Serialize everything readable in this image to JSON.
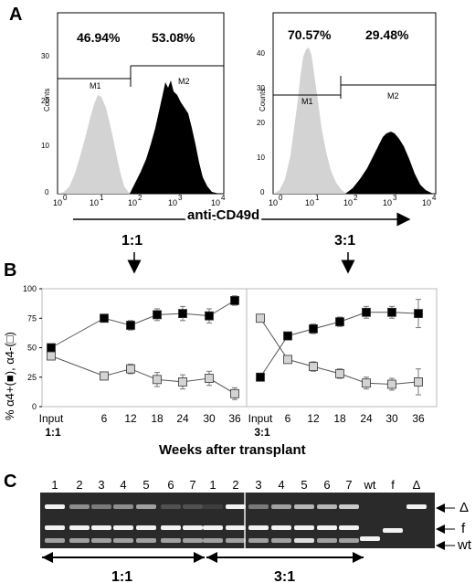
{
  "panels": {
    "A": "A",
    "B": "B",
    "C": "C"
  },
  "panel_a": {
    "x_axis_label": "anti-CD49d",
    "y_axis_label": "Counts",
    "x_ticks": [
      "10",
      "0",
      "10",
      "1",
      "10",
      "2",
      "10",
      "3",
      "10",
      "4"
    ],
    "histograms": [
      {
        "ratio": "1:1",
        "left_pct": "46.94%",
        "right_pct": "53.08%",
        "gate_left": "M1",
        "gate_right": "M2",
        "y_ticks": [
          "0",
          "10",
          "20",
          "30"
        ]
      },
      {
        "ratio": "3:1",
        "left_pct": "70.57%",
        "right_pct": "29.48%",
        "gate_left": "M1",
        "gate_right": "M2",
        "y_ticks": [
          "0",
          "10",
          "20",
          "30",
          "40"
        ]
      }
    ]
  },
  "chart_data": [
    {
      "type": "line",
      "panel": "B-left",
      "x_tick_labels": [
        "Input",
        "6",
        "12",
        "18",
        "24",
        "30",
        "36"
      ],
      "x_sub_label": "1:1",
      "xlabel": "Weeks after transplant",
      "ylabel": "% α4+(■), α4-(□)",
      "ylim": [
        0,
        100
      ],
      "y_ticks": [
        "0",
        "25",
        "50",
        "75",
        "100"
      ],
      "series": [
        {
          "marker": "black-square",
          "values": [
            50,
            75,
            69,
            78,
            79,
            77,
            90
          ],
          "errors": [
            3,
            3,
            4,
            5,
            6,
            6,
            4
          ]
        },
        {
          "marker": "gray-square",
          "values": [
            43,
            26,
            32,
            23,
            21,
            24,
            11
          ],
          "errors": [
            3,
            3,
            4,
            6,
            6,
            6,
            5
          ]
        }
      ]
    },
    {
      "type": "line",
      "panel": "B-right",
      "x_tick_labels": [
        "Input",
        "6",
        "12",
        "18",
        "24",
        "30",
        "36"
      ],
      "x_sub_label": "3:1",
      "xlabel": "Weeks after transplant",
      "ylim": [
        0,
        100
      ],
      "series": [
        {
          "marker": "black-square",
          "values": [
            25,
            60,
            66,
            72,
            80,
            80,
            79
          ],
          "errors": [
            2,
            3,
            4,
            4,
            5,
            5,
            12
          ]
        },
        {
          "marker": "gray-square",
          "values": [
            75,
            40,
            34,
            28,
            20,
            19,
            21
          ],
          "errors": [
            2,
            3,
            4,
            4,
            5,
            5,
            11
          ]
        }
      ]
    }
  ],
  "panel_c": {
    "lanes": [
      "1",
      "2",
      "3",
      "4",
      "5",
      "6",
      "7",
      "1",
      "2",
      "3",
      "4",
      "5",
      "6",
      "7",
      "wt",
      "f",
      "Δ"
    ],
    "band_labels": {
      "delta": "Δ",
      "f": "f",
      "wt": "wt"
    },
    "group_labels": [
      "1:1",
      "3:1"
    ]
  },
  "colors": {
    "black_fill": "#000000",
    "gray_fill": "#d3d3d3",
    "gel_background": "#2a2a2a"
  }
}
